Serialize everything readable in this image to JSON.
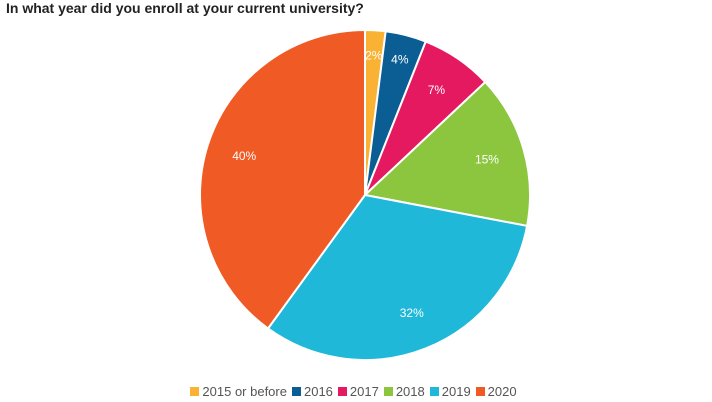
{
  "chart_data": {
    "type": "pie",
    "title": "In what year did you enroll at your current university?",
    "legend_position": "bottom",
    "slices": [
      {
        "label": "2015 or before",
        "value": 2,
        "display": "2%",
        "color": "#f9b233"
      },
      {
        "label": "2016",
        "value": 4,
        "display": "4%",
        "color": "#0b5e94"
      },
      {
        "label": "2017",
        "value": 7,
        "display": "7%",
        "color": "#e5195f"
      },
      {
        "label": "2018",
        "value": 15,
        "display": "15%",
        "color": "#8cc63f"
      },
      {
        "label": "2019",
        "value": 32,
        "display": "32%",
        "color": "#1fb8d8"
      },
      {
        "label": "2020",
        "value": 40,
        "display": "40%",
        "color": "#f05a24"
      }
    ]
  }
}
